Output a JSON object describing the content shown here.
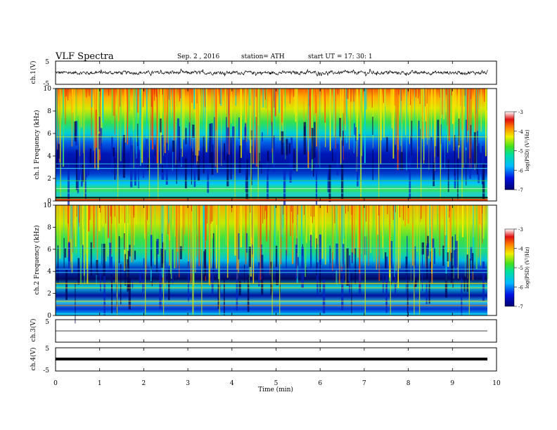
{
  "header": {
    "title": "VLF  Spectra",
    "date": "Sep. 2  , 2016",
    "station": "station= ATH",
    "start": "start  UT  =    17: 30: 1"
  },
  "colorbar": {
    "label": "log(PSD) (V²/Hz)",
    "ticks": [
      "-3",
      "-4",
      "-5",
      "-6",
      "-7"
    ]
  },
  "chart_data": [
    {
      "type": "line",
      "name": "ch.1 waveform",
      "ylabel": "ch.1(V)",
      "ylim": [
        -5,
        5
      ],
      "yticks": [
        "5",
        "-5"
      ],
      "xlim": [
        0,
        10
      ],
      "description_values": {
        "mean": 0,
        "typical_amplitude": 1.2,
        "end_time_min": 9.8
      }
    },
    {
      "type": "heatmap",
      "name": "ch.1 spectrogram",
      "ylabel": "ch.1 Frequency  (kHz)",
      "ylim": [
        0,
        10
      ],
      "yticks": [
        "0",
        "2",
        "4",
        "6",
        "8",
        "10"
      ],
      "xlim": [
        0,
        10
      ],
      "zlim": [
        -7,
        -3
      ],
      "end_time_min": 9.8
    },
    {
      "type": "heatmap",
      "name": "ch.2 spectrogram",
      "ylabel": "ch.2 Frequency  (kHz)",
      "ylim": [
        0,
        10
      ],
      "yticks": [
        "0",
        "2",
        "4",
        "6",
        "8",
        "10"
      ],
      "xlim": [
        0,
        10
      ],
      "zlim": [
        -7,
        -3
      ],
      "end_time_min": 9.8
    },
    {
      "type": "line",
      "name": "ch.3 waveform",
      "ylabel": "ch.3(V)",
      "ylim": [
        -5,
        5
      ],
      "yticks": [
        "5"
      ],
      "xlim": [
        0,
        10
      ],
      "level": -3
    },
    {
      "type": "line",
      "name": "ch.4 waveform",
      "ylabel": "ch.4(V)",
      "ylim": [
        -5,
        5
      ],
      "yticks": [
        "5",
        "-5"
      ],
      "xlim": [
        0,
        10
      ],
      "level": 0
    }
  ],
  "xaxis": {
    "label": "Time  (min)",
    "ticks": [
      "0",
      "1",
      "2",
      "3",
      "4",
      "5",
      "6",
      "7",
      "8",
      "9",
      "10"
    ]
  }
}
